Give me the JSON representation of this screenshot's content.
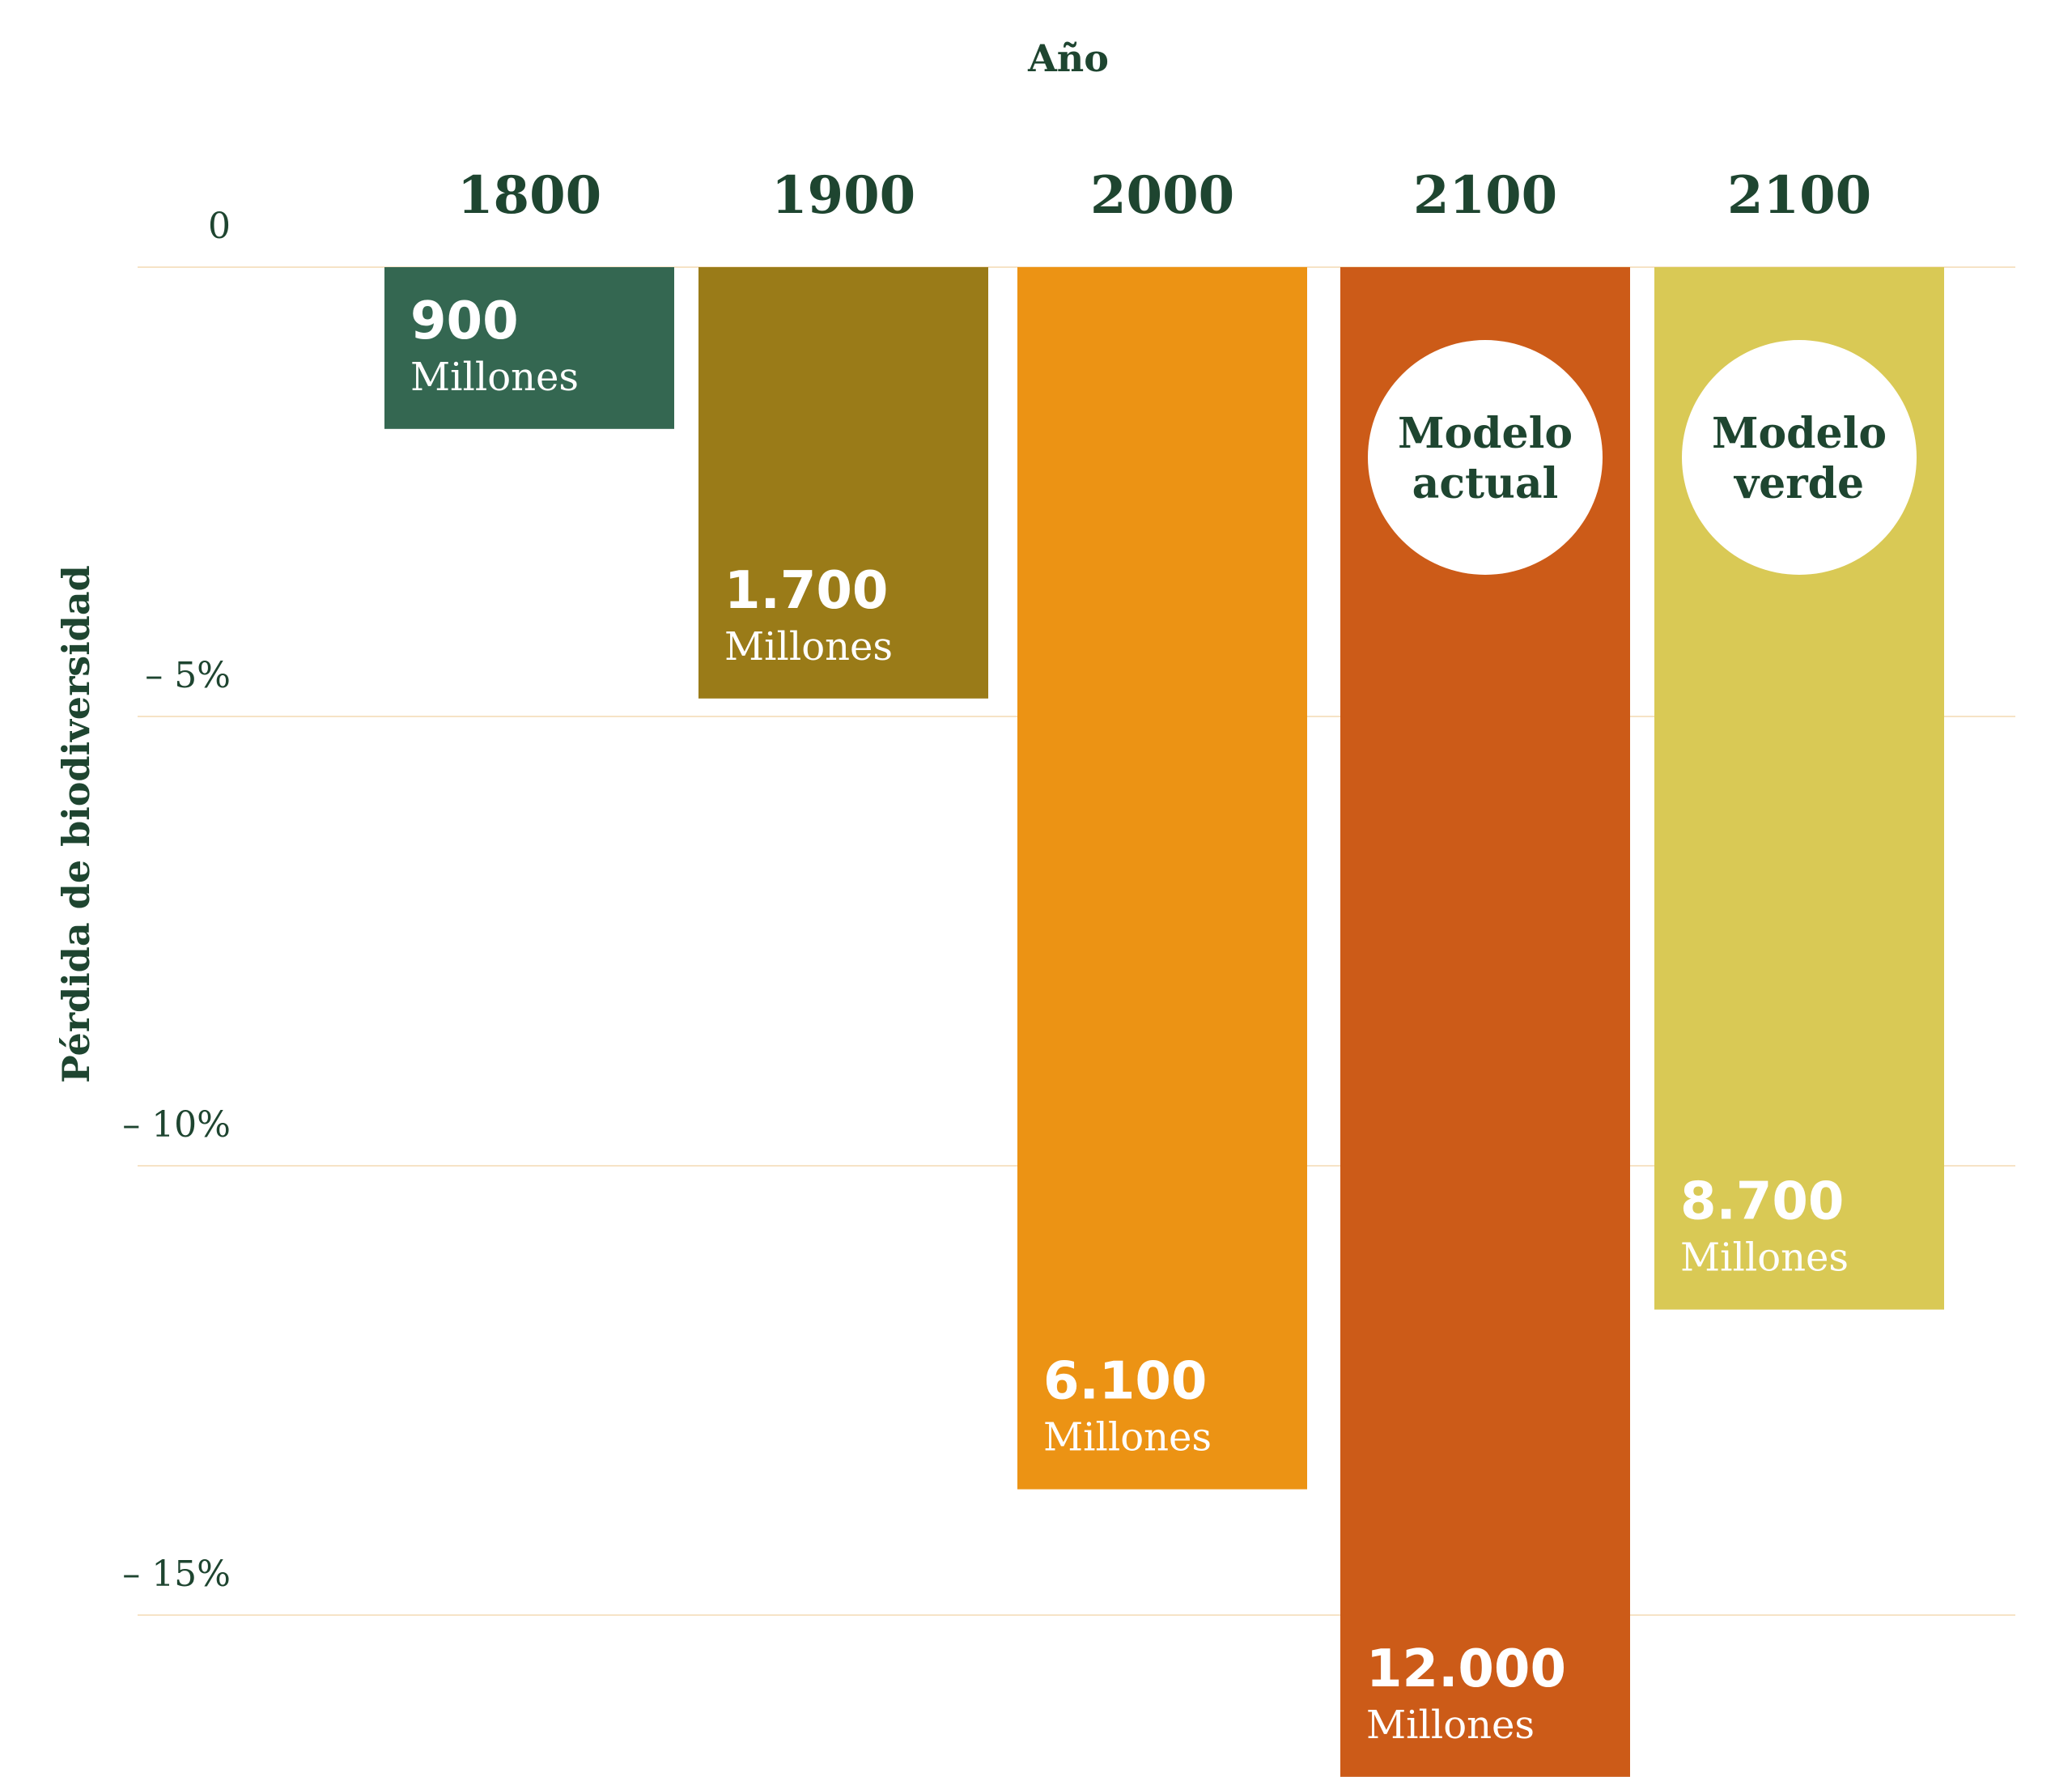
{
  "chart_data": {
    "type": "bar",
    "xlabel": "Año",
    "ylabel": "Pérdida de biodiversidad",
    "y_ticks": [
      "0",
      "– 5%",
      "– 10%",
      "– 15%"
    ],
    "y_tick_values": [
      0,
      -5,
      -10,
      -15
    ],
    "ylim": [
      -16.8,
      0
    ],
    "grid": true,
    "categories": [
      "1800",
      "1900",
      "2000",
      "2100",
      "2100"
    ],
    "values": [
      -1.8,
      -4.8,
      -13.6,
      -16.8,
      -11.6
    ],
    "value_labels": [
      "900",
      "1.700",
      "6.100",
      "12.000",
      "8.700"
    ],
    "unit_label": "Millones",
    "annotations": [
      {
        "category_index": 3,
        "text_line1": "Modelo",
        "text_line2": "actual"
      },
      {
        "category_index": 4,
        "text_line1": "Modelo",
        "text_line2": "verde"
      }
    ],
    "colors": [
      "#346751",
      "#9a7b18",
      "#ec9314",
      "#cc5b18",
      "#d9c955"
    ],
    "text_color": "#1e4530",
    "grid_color": "#f6e3c6"
  }
}
